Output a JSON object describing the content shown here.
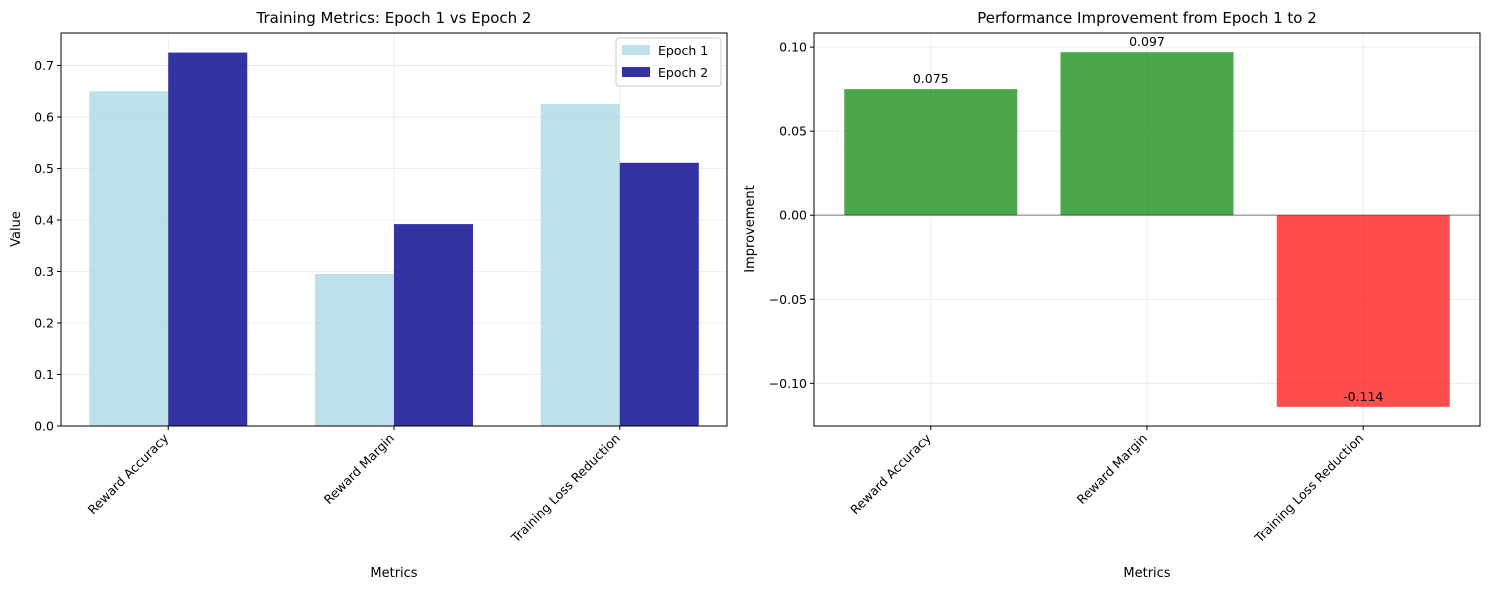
{
  "chart_data": [
    {
      "type": "bar",
      "title": "Training Metrics: Epoch 1 vs Epoch 2",
      "xlabel": "Metrics",
      "ylabel": "Value",
      "categories": [
        "Reward Accuracy",
        "Reward Margin",
        "Training Loss Reduction"
      ],
      "series": [
        {
          "name": "Epoch 1",
          "values": [
            0.65,
            0.295,
            0.625
          ],
          "color": "#add8e6"
        },
        {
          "name": "Epoch 2",
          "values": [
            0.725,
            0.392,
            0.511
          ],
          "color": "#00008b"
        }
      ],
      "ylim": [
        0,
        0.763
      ],
      "yticks": [
        "0.0",
        "0.1",
        "0.2",
        "0.3",
        "0.4",
        "0.5",
        "0.6",
        "0.7"
      ],
      "grid": true,
      "legend": "top-right"
    },
    {
      "type": "bar",
      "title": "Performance Improvement from Epoch 1 to 2",
      "xlabel": "Metrics",
      "ylabel": "Improvement",
      "categories": [
        "Reward Accuracy",
        "Reward Margin",
        "Training Loss Reduction"
      ],
      "values": [
        0.075,
        0.097,
        -0.114
      ],
      "data_labels": [
        "0.075",
        "0.097",
        "-0.114"
      ],
      "positive_color": "#008000",
      "negative_color": "#ff0000",
      "ylim": [
        -0.1254,
        0.1084
      ],
      "yticks": [
        "−0.10",
        "−0.05",
        "0.00",
        "0.05",
        "0.10"
      ],
      "grid": true,
      "zero_line": true
    }
  ]
}
